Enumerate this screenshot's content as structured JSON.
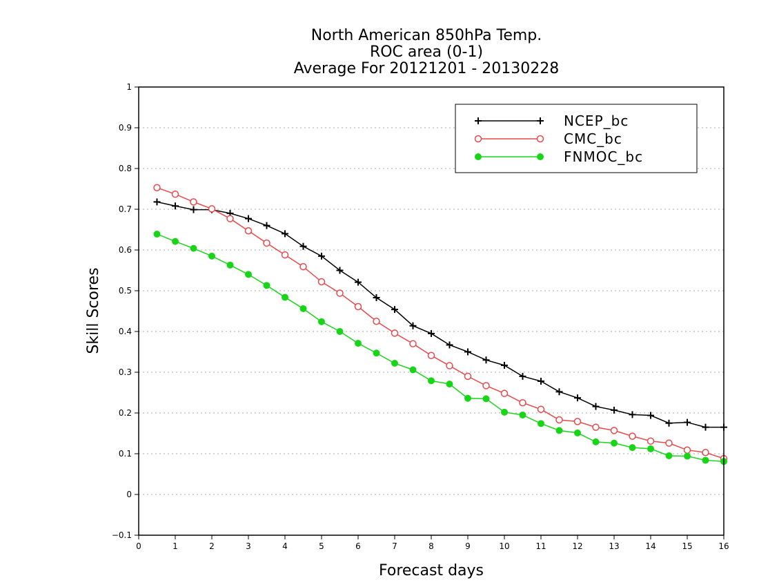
{
  "chart_data": {
    "type": "line",
    "title_lines": [
      "North American 850hPa Temp.",
      "ROC area (0-1)",
      "Average For 20121201 - 20130228"
    ],
    "xlabel": "Forecast days",
    "ylabel": "Skill Scores",
    "xlim": [
      0,
      16
    ],
    "ylim": [
      -0.1,
      1
    ],
    "x_ticks": [
      "0",
      "1",
      "2",
      "3",
      "4",
      "5",
      "6",
      "7",
      "8",
      "9",
      "10",
      "11",
      "12",
      "13",
      "14",
      "15",
      "16"
    ],
    "y_ticks": [
      "−0.1",
      "0",
      "0.1",
      "0.2",
      "0.3",
      "0.4",
      "0.5",
      "0.6",
      "0.7",
      "0.8",
      "0.9",
      "1"
    ],
    "grid": "horizontal dotted",
    "legend_position": "top-right",
    "x": [
      0.5,
      1,
      1.5,
      2,
      2.5,
      3,
      3.5,
      4,
      4.5,
      5,
      5.5,
      6,
      6.5,
      7,
      7.5,
      8,
      8.5,
      9,
      9.5,
      10,
      10.5,
      11,
      11.5,
      12,
      12.5,
      13,
      13.5,
      14,
      14.5,
      15,
      15.5,
      16
    ],
    "series": [
      {
        "name": "NCEP_bc",
        "color": "#000000",
        "marker": "plus",
        "values": [
          0.718,
          0.708,
          0.699,
          0.699,
          0.69,
          0.677,
          0.66,
          0.64,
          0.609,
          0.585,
          0.55,
          0.521,
          0.483,
          0.454,
          0.414,
          0.395,
          0.367,
          0.35,
          0.33,
          0.317,
          0.29,
          0.278,
          0.252,
          0.237,
          0.216,
          0.207,
          0.196,
          0.194,
          0.175,
          0.177,
          0.165,
          0.165
        ]
      },
      {
        "name": "CMC_bc",
        "color": "#e8484a",
        "marker": "open-circle",
        "values": [
          0.753,
          0.737,
          0.718,
          0.701,
          0.677,
          0.647,
          0.617,
          0.588,
          0.559,
          0.522,
          0.494,
          0.461,
          0.425,
          0.396,
          0.37,
          0.341,
          0.316,
          0.29,
          0.267,
          0.248,
          0.225,
          0.209,
          0.183,
          0.179,
          0.165,
          0.157,
          0.143,
          0.131,
          0.126,
          0.109,
          0.103,
          0.088
        ]
      },
      {
        "name": "FNMOC_bc",
        "color": "#19d519",
        "marker": "filled-circle",
        "values": [
          0.639,
          0.621,
          0.604,
          0.585,
          0.563,
          0.54,
          0.513,
          0.484,
          0.456,
          0.424,
          0.4,
          0.371,
          0.347,
          0.322,
          0.306,
          0.279,
          0.271,
          0.236,
          0.235,
          0.202,
          0.195,
          0.174,
          0.157,
          0.151,
          0.129,
          0.126,
          0.115,
          0.112,
          0.095,
          0.094,
          0.084,
          0.081
        ]
      }
    ]
  }
}
